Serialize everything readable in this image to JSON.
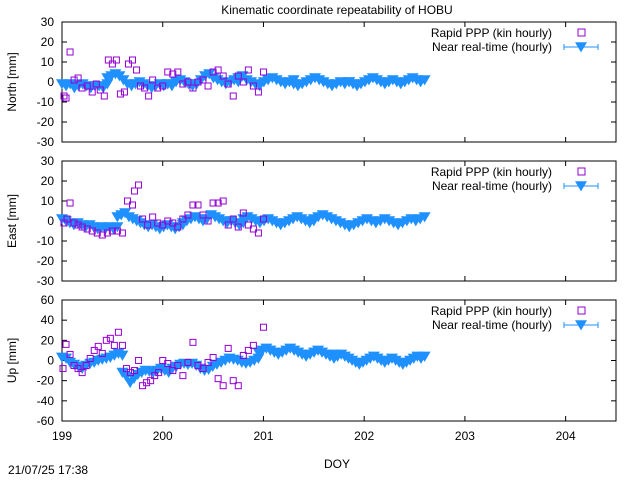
{
  "title": "Kinematic coordinate repeatability of HOBU",
  "timestamp": "21/07/25 17:38",
  "legend": {
    "rapid": "Rapid PPP (kin hourly)",
    "nrt": "Near real-time (hourly)"
  },
  "colors": {
    "rapid": "#9400d3",
    "nrt": "#1e90ff",
    "axis": "#000000"
  },
  "chart_data": [
    {
      "type": "scatter",
      "title": "Kinematic coordinate repeatability of HOBU",
      "ylabel": "North [mm]",
      "xlabel": "",
      "xlim": [
        199,
        204.5
      ],
      "ylim": [
        -30,
        30
      ],
      "xticks": [
        199,
        200,
        201,
        202,
        203,
        204
      ],
      "yticks": [
        -30,
        -20,
        -10,
        0,
        10,
        20,
        30
      ],
      "legend_position": "top-right",
      "series": [
        {
          "name": "Rapid PPP (kin hourly)",
          "marker": "open-square",
          "x": [
            199.02,
            199.04,
            199.08,
            199.12,
            199.16,
            199.2,
            199.25,
            199.3,
            199.34,
            199.38,
            199.42,
            199.46,
            199.5,
            199.54,
            199.58,
            199.62,
            199.66,
            199.7,
            199.74,
            199.78,
            199.82,
            199.86,
            199.9,
            199.95,
            200.0,
            200.05,
            200.1,
            200.15,
            200.2,
            200.25,
            200.3,
            200.35,
            200.4,
            200.45,
            200.5,
            200.55,
            200.6,
            200.65,
            200.7,
            200.75,
            200.8,
            200.85,
            200.9,
            200.95,
            201.0
          ],
          "y": [
            -7,
            -8,
            15,
            1,
            2,
            -3,
            -2,
            -5,
            -1,
            -4,
            -7,
            11,
            9,
            11,
            -6,
            -5,
            9,
            11,
            6,
            -2,
            -3,
            -7,
            1,
            -3,
            -2,
            5,
            4,
            5,
            -1,
            0,
            -3,
            0,
            1,
            -2,
            5,
            6,
            3,
            -1,
            -7,
            3,
            0,
            6,
            -2,
            -5,
            5
          ]
        },
        {
          "name": "Near real-time (hourly)",
          "marker": "filled-triangle-down",
          "segments": [
            {
              "x_start": 199.0,
              "x_end": 199.45,
              "points": 12,
              "shape": [
                -1,
                -2,
                -1,
                -3,
                -2,
                -1,
                -2,
                -3,
                -2,
                -2,
                -3,
                -1
              ]
            },
            {
              "x_start": 199.45,
              "x_end": 200.05,
              "points": 16,
              "shape": [
                2,
                3,
                4,
                3,
                1,
                -1,
                -2,
                -1,
                0,
                -1,
                -2,
                -3,
                -2,
                -1,
                -2,
                -1
              ]
            },
            {
              "x_start": 200.05,
              "x_end": 200.75,
              "points": 18,
              "shape": [
                -1,
                -2,
                0,
                1,
                0,
                -1,
                -2,
                -1,
                1,
                3,
                4,
                2,
                1,
                0,
                -1,
                0,
                1,
                0
              ]
            },
            {
              "x_start": 200.75,
              "x_end": 201.3,
              "points": 14,
              "shape": [
                2,
                3,
                1,
                0,
                -1,
                -2,
                0,
                1,
                2,
                1,
                0,
                -1,
                0,
                1
              ]
            },
            {
              "x_start": 201.3,
              "x_end": 201.85,
              "points": 14,
              "shape": [
                -1,
                -2,
                -1,
                0,
                1,
                2,
                1,
                0,
                -1,
                -2,
                -1,
                0,
                -1,
                0
              ]
            },
            {
              "x_start": 201.85,
              "x_end": 202.6,
              "points": 20,
              "shape": [
                0,
                -1,
                -2,
                -1,
                0,
                1,
                2,
                1,
                0,
                -1,
                0,
                1,
                0,
                -1,
                0,
                1,
                2,
                1,
                0,
                1
              ]
            }
          ]
        }
      ]
    },
    {
      "type": "scatter",
      "ylabel": "East [mm]",
      "xlabel": "",
      "xlim": [
        199,
        204.5
      ],
      "ylim": [
        -30,
        30
      ],
      "xticks": [
        199,
        200,
        201,
        202,
        203,
        204
      ],
      "yticks": [
        -30,
        -20,
        -10,
        0,
        10,
        20,
        30
      ],
      "legend_position": "top-right",
      "series": [
        {
          "name": "Rapid PPP (kin hourly)",
          "marker": "open-square",
          "x": [
            199.02,
            199.05,
            199.08,
            199.12,
            199.16,
            199.2,
            199.25,
            199.3,
            199.35,
            199.4,
            199.45,
            199.5,
            199.55,
            199.6,
            199.65,
            199.7,
            199.72,
            199.76,
            199.8,
            199.85,
            199.9,
            199.95,
            200.0,
            200.05,
            200.1,
            200.15,
            200.2,
            200.25,
            200.3,
            200.35,
            200.4,
            200.45,
            200.5,
            200.55,
            200.6,
            200.65,
            200.7,
            200.75,
            200.8,
            200.85,
            200.9,
            200.95,
            201.0
          ],
          "y": [
            -1,
            1,
            9,
            -1,
            -2,
            -3,
            -4,
            -5,
            -6,
            -7,
            -6,
            -5,
            -5,
            -6,
            10,
            8,
            15,
            18,
            1,
            -2,
            2,
            -1,
            -2,
            0,
            -1,
            -3,
            1,
            3,
            8,
            8,
            3,
            0,
            9,
            9,
            10,
            -2,
            1,
            -3,
            4,
            -2,
            -4,
            -6,
            1
          ]
        },
        {
          "name": "Near real-time (hourly)",
          "marker": "filled-triangle-down",
          "segments": [
            {
              "x_start": 199.0,
              "x_end": 199.55,
              "points": 15,
              "shape": [
                1,
                0,
                -1,
                -2,
                -1,
                -2,
                -3,
                -2,
                -3,
                -4,
                -3,
                -4,
                -3,
                -4,
                -3
              ]
            },
            {
              "x_start": 199.55,
              "x_end": 200.2,
              "points": 18,
              "shape": [
                2,
                3,
                4,
                2,
                1,
                0,
                -1,
                -2,
                -3,
                -2,
                -3,
                -4,
                -3,
                -2,
                -3,
                -4,
                -3,
                -2
              ]
            },
            {
              "x_start": 200.2,
              "x_end": 200.8,
              "points": 16,
              "shape": [
                -1,
                0,
                1,
                2,
                1,
                0,
                1,
                3,
                2,
                1,
                0,
                -1,
                0,
                -1,
                -2,
                -1
              ]
            },
            {
              "x_start": 200.8,
              "x_end": 201.5,
              "points": 18,
              "shape": [
                1,
                2,
                1,
                0,
                -1,
                0,
                1,
                0,
                -1,
                -2,
                -1,
                0,
                1,
                2,
                1,
                0,
                -1,
                0
              ]
            },
            {
              "x_start": 201.5,
              "x_end": 202.6,
              "points": 26,
              "shape": [
                1,
                2,
                3,
                2,
                1,
                0,
                -1,
                -2,
                -3,
                -2,
                -1,
                0,
                1,
                0,
                -1,
                0,
                1,
                0,
                -1,
                -2,
                -1,
                0,
                1,
                0,
                1,
                2
              ]
            }
          ]
        }
      ]
    },
    {
      "type": "scatter",
      "ylabel": "Up [mm]",
      "xlabel": "DOY",
      "xlim": [
        199,
        204.5
      ],
      "ylim": [
        -60,
        60
      ],
      "xticks": [
        199,
        200,
        201,
        202,
        203,
        204
      ],
      "yticks": [
        -60,
        -40,
        -20,
        0,
        20,
        40,
        60
      ],
      "legend_position": "top-right",
      "series": [
        {
          "name": "Rapid PPP (kin hourly)",
          "marker": "open-square",
          "x": [
            199.01,
            199.04,
            199.08,
            199.12,
            199.16,
            199.2,
            199.24,
            199.28,
            199.32,
            199.36,
            199.4,
            199.44,
            199.48,
            199.52,
            199.56,
            199.6,
            199.64,
            199.68,
            199.72,
            199.76,
            199.8,
            199.84,
            199.88,
            199.92,
            199.96,
            200.0,
            200.05,
            200.1,
            200.15,
            200.2,
            200.25,
            200.3,
            200.35,
            200.4,
            200.45,
            200.5,
            200.55,
            200.6,
            200.65,
            200.7,
            200.75,
            200.8,
            200.85,
            200.9,
            201.0
          ],
          "y": [
            -8,
            16,
            6,
            -5,
            -8,
            -12,
            -5,
            2,
            10,
            14,
            7,
            20,
            22,
            15,
            28,
            15,
            -8,
            -12,
            -10,
            0,
            -25,
            -22,
            -20,
            -15,
            -12,
            0,
            -3,
            -10,
            -5,
            -15,
            -2,
            18,
            -5,
            -8,
            -2,
            3,
            -18,
            -25,
            12,
            -20,
            -25,
            5,
            10,
            15,
            33
          ]
        },
        {
          "name": "Near real-time (hourly)",
          "marker": "filled-triangle-down",
          "segments": [
            {
              "x_start": 199.0,
              "x_end": 199.6,
              "points": 16,
              "shape": [
                3,
                2,
                -2,
                -4,
                -6,
                -8,
                -5,
                -3,
                -2,
                0,
                1,
                2,
                3,
                5,
                7,
                5
              ]
            },
            {
              "x_start": 199.6,
              "x_end": 200.25,
              "points": 18,
              "shape": [
                -12,
                -16,
                -22,
                -18,
                -14,
                -12,
                -10,
                -11,
                -12,
                -10,
                -8,
                -10,
                -12,
                -8,
                -6,
                -4,
                -3,
                -4
              ]
            },
            {
              "x_start": 200.25,
              "x_end": 200.95,
              "points": 18,
              "shape": [
                -4,
                -3,
                -5,
                -8,
                -10,
                -9,
                -6,
                -4,
                -2,
                0,
                2,
                1,
                0,
                -2,
                -3,
                -2,
                0,
                2
              ]
            },
            {
              "x_start": 200.95,
              "x_end": 201.7,
              "points": 20,
              "shape": [
                8,
                10,
                12,
                10,
                8,
                6,
                8,
                10,
                12,
                10,
                8,
                6,
                4,
                6,
                8,
                10,
                8,
                6,
                4,
                6
              ]
            },
            {
              "x_start": 201.7,
              "x_end": 202.6,
              "points": 26,
              "shape": [
                2,
                4,
                6,
                4,
                2,
                0,
                -2,
                -4,
                -2,
                0,
                2,
                4,
                2,
                0,
                -2,
                0,
                2,
                0,
                -2,
                -4,
                -2,
                0,
                2,
                4,
                2,
                4
              ]
            }
          ]
        }
      ]
    }
  ]
}
